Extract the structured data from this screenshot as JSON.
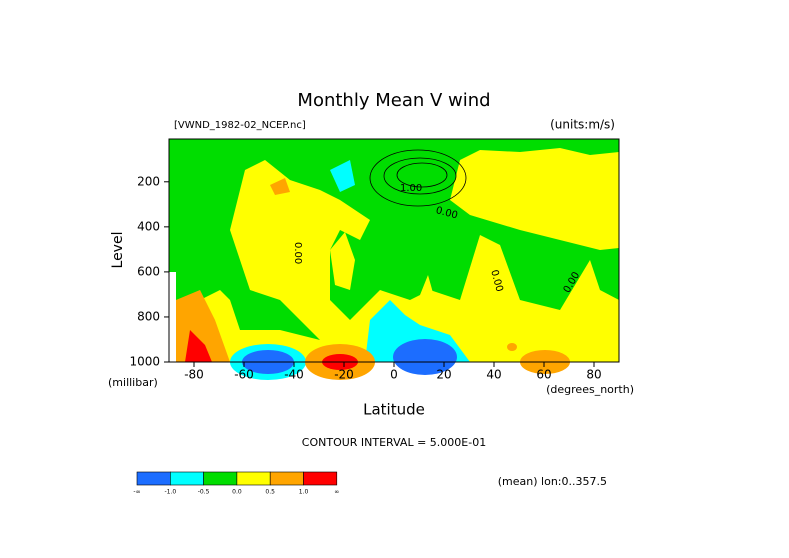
{
  "chart_data": {
    "type": "contour",
    "title": "Monthly Mean V wind",
    "subtitle_left": "[VWND_1982-02_NCEP.nc]",
    "subtitle_right": "(units:m/s)",
    "xlabel": "Latitude",
    "xunits": "(degrees_north)",
    "ylabel": "Level",
    "yunits": "(millibar)",
    "xlim": [
      -90,
      90
    ],
    "xticks": [
      -80,
      -60,
      -40,
      -20,
      0,
      20,
      40,
      60,
      80
    ],
    "ylim": [
      1000,
      10
    ],
    "yticks": [
      200,
      400,
      600,
      800,
      1000
    ],
    "contour_labels": [
      "1.00",
      "0.00",
      "0.00",
      "0.00",
      "0.00"
    ],
    "contour_interval": "CONTOUR INTERVAL = 5.000E-01",
    "region_note": "(mean) lon:0..357.5",
    "colorbar": {
      "colors": [
        "#1c6dff",
        "#00ffff",
        "#00dd00",
        "#ffff00",
        "#ffa500",
        "#ff0000"
      ],
      "labels": [
        "-∞",
        "-1.0",
        "-0.5",
        "0.0",
        "0.5",
        "1.0",
        "∞"
      ]
    }
  }
}
